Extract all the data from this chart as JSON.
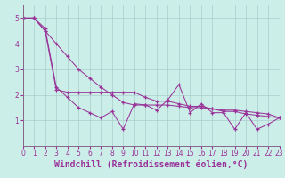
{
  "xlabel": "Windchill (Refroidissement éolien,°C)",
  "background_color": "#cceee8",
  "grid_color": "#aacccc",
  "line_color": "#993399",
  "spine_color": "#886688",
  "marker": "+",
  "xlim": [
    0,
    23
  ],
  "ylim": [
    0,
    5.5
  ],
  "yticks": [
    1,
    2,
    3,
    4,
    5
  ],
  "xticks": [
    0,
    1,
    2,
    3,
    4,
    5,
    6,
    7,
    8,
    9,
    10,
    11,
    12,
    13,
    14,
    15,
    16,
    17,
    18,
    19,
    20,
    21,
    22,
    23
  ],
  "series": [
    [
      5.0,
      5.0,
      4.6,
      2.3,
      1.9,
      1.5,
      1.3,
      1.1,
      1.35,
      0.65,
      1.65,
      1.6,
      1.4,
      1.8,
      2.4,
      1.3,
      1.65,
      1.3,
      1.3,
      0.65,
      1.3,
      0.65,
      0.85,
      1.1
    ],
    [
      5.0,
      5.0,
      4.5,
      2.2,
      2.1,
      2.1,
      2.1,
      2.1,
      2.1,
      2.1,
      2.1,
      1.9,
      1.75,
      1.75,
      1.65,
      1.55,
      1.55,
      1.45,
      1.35,
      1.35,
      1.25,
      1.2,
      1.15,
      1.1
    ],
    [
      5.0,
      5.0,
      4.5,
      4.0,
      3.5,
      3.0,
      2.65,
      2.3,
      2.0,
      1.7,
      1.6,
      1.6,
      1.6,
      1.6,
      1.55,
      1.5,
      1.5,
      1.45,
      1.4,
      1.4,
      1.35,
      1.3,
      1.25,
      1.1
    ]
  ],
  "tick_fontsize": 5.5,
  "xlabel_fontsize": 7.0,
  "linewidth": 0.75,
  "markersize": 3.5,
  "markeredgewidth": 0.9
}
